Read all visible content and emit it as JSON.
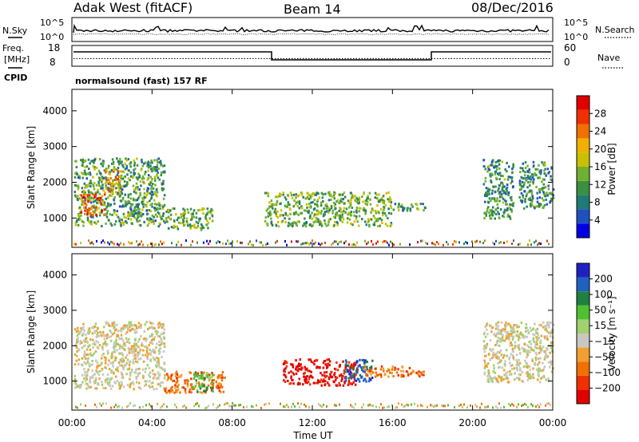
{
  "header": {
    "station": "Adak West (fitACF)",
    "beam": "Beam 14",
    "date": "08/Dec/2016"
  },
  "top_panels": {
    "nsky_label": "N.Sky",
    "nsearch_label": "N.Search",
    "noise_ticks": [
      "10^5",
      "10^0"
    ],
    "freq_label_1": "Freq.",
    "freq_label_2": "[MHz]",
    "freq_ticks": [
      "18",
      "8"
    ],
    "nave_label": "Nave",
    "nave_ticks": [
      "60",
      "0"
    ],
    "cpid_label": "CPID",
    "cpid_text": "normalsound (fast) 157 RF"
  },
  "chart_data": [
    {
      "type": "heatmap",
      "name": "power",
      "ylabel": "Slant Range [km]",
      "yticks": [
        1000,
        2000,
        3000,
        4000
      ],
      "ylim": [
        180,
        4600
      ],
      "xlim_hours": [
        0,
        24
      ],
      "colorbar": {
        "label": "Power [dB]",
        "ticks": [
          "28",
          "24",
          "20",
          "16",
          "12",
          "8",
          "4"
        ],
        "colors": [
          "#0000e0",
          "#2050c0",
          "#207a78",
          "#3a9040",
          "#70b030",
          "#c8c000",
          "#f0b000",
          "#f07000",
          "#f03000",
          "#e00000"
        ]
      },
      "regions": [
        {
          "t": [
            0.1,
            4.6
          ],
          "r": [
            800,
            2700
          ],
          "level": 0.35
        },
        {
          "t": [
            1.6,
            2.4
          ],
          "r": [
            1700,
            2400
          ],
          "level": 0.7
        },
        {
          "t": [
            0.4,
            1.6
          ],
          "r": [
            1100,
            1700
          ],
          "level": 0.8
        },
        {
          "t": [
            4.6,
            7.0
          ],
          "r": [
            700,
            1300
          ],
          "level": 0.4
        },
        {
          "t": [
            9.6,
            15.9
          ],
          "r": [
            800,
            1750
          ],
          "level": 0.4
        },
        {
          "t": [
            16.0,
            17.6
          ],
          "r": [
            1200,
            1450
          ],
          "level": 0.35
        },
        {
          "t": [
            20.5,
            22.0
          ],
          "r": [
            1000,
            2700
          ],
          "level": 0.3
        },
        {
          "t": [
            22.3,
            24.0
          ],
          "r": [
            1300,
            2600
          ],
          "level": 0.3
        }
      ]
    },
    {
      "type": "heatmap",
      "name": "velocity",
      "ylabel": "Slant Range [km]",
      "yticks": [
        1000,
        2000,
        3000,
        4000
      ],
      "ylim": [
        180,
        4600
      ],
      "xlim_hours": [
        0,
        24
      ],
      "xticks": [
        "00:00",
        "04:00",
        "08:00",
        "12:00",
        "16:00",
        "20:00",
        "00:00"
      ],
      "xlabel": "Time UT",
      "colorbar": {
        "label": "Velocity [m s⁻¹]",
        "ticks": [
          "200",
          "100",
          "50",
          "15",
          "−15",
          "−50",
          "−100",
          "−200"
        ],
        "colors": [
          "#e00000",
          "#f03000",
          "#f07000",
          "#f0a030",
          "#c8c8c0",
          "#a0d070",
          "#50c030",
          "#208040",
          "#2060c0",
          "#2020c0"
        ]
      },
      "regions": [
        {
          "t": [
            0.1,
            4.6
          ],
          "r": [
            800,
            2700
          ],
          "level": "grey"
        },
        {
          "t": [
            4.6,
            7.6
          ],
          "r": [
            700,
            1300
          ],
          "level": "orange"
        },
        {
          "t": [
            6.0,
            7.0
          ],
          "r": [
            700,
            1300
          ],
          "level": "green"
        },
        {
          "t": [
            10.5,
            14.2
          ],
          "r": [
            900,
            1650
          ],
          "level": "red"
        },
        {
          "t": [
            13.6,
            15.0
          ],
          "r": [
            1000,
            1650
          ],
          "level": "blue"
        },
        {
          "t": [
            14.5,
            17.6
          ],
          "r": [
            1150,
            1450
          ],
          "level": "orange"
        },
        {
          "t": [
            20.5,
            24.0
          ],
          "r": [
            1000,
            2700
          ],
          "level": "grey"
        }
      ]
    }
  ]
}
